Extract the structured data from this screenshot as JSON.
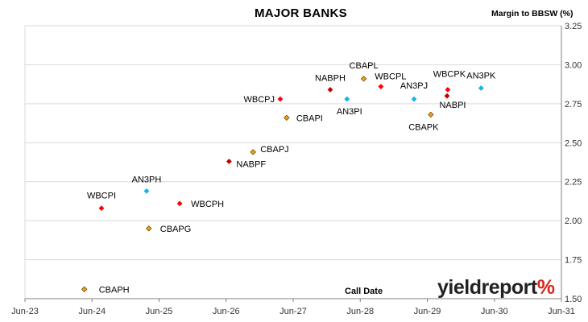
{
  "chart_data": {
    "type": "scatter",
    "title": "MAJOR BANKS",
    "xlabel": "Call Date",
    "ylabel": "Margin to BBSW (%)",
    "ylim": [
      1.5,
      3.25
    ],
    "y_ticks": [
      "1.50",
      "1.75",
      "2.00",
      "2.25",
      "2.50",
      "2.75",
      "3.00",
      "3.25"
    ],
    "x_ticks": [
      "Jun-23",
      "Jun-24",
      "Jun-25",
      "Jun-26",
      "Jun-27",
      "Jun-28",
      "Jun-29",
      "Jun-30",
      "Jun-31"
    ],
    "xlim": [
      "Jun-23",
      "Jun-31"
    ],
    "y_axis_position": "right",
    "grid": "horizontal",
    "legend": "none",
    "series_colors": {
      "CBA": "#f0a30a",
      "WBC": "#ff0000",
      "NAB": "#c00000",
      "ANZ": "#1ab2e8"
    },
    "points": [
      {
        "label": "CBAPH",
        "issuer": "CBA",
        "x": "2024-04-20",
        "y": 1.56
      },
      {
        "label": "WBCPI",
        "issuer": "WBC",
        "x": "2024-07-22",
        "y": 2.08
      },
      {
        "label": "AN3PH",
        "issuer": "ANZ",
        "x": "2025-03-24",
        "y": 2.19
      },
      {
        "label": "CBAPG",
        "issuer": "CBA",
        "x": "2025-04-06",
        "y": 1.95
      },
      {
        "label": "WBCPH",
        "issuer": "WBC",
        "x": "2025-09-22",
        "y": 2.11
      },
      {
        "label": "NABPF",
        "issuer": "NAB",
        "x": "2026-06-17",
        "y": 2.38
      },
      {
        "label": "CBAPJ",
        "issuer": "CBA",
        "x": "2026-10-26",
        "y": 2.44
      },
      {
        "label": "WBCPJ",
        "issuer": "WBC",
        "x": "2027-03-22",
        "y": 2.78
      },
      {
        "label": "CBAPI",
        "issuer": "CBA",
        "x": "2027-04-26",
        "y": 2.66
      },
      {
        "label": "NABPH",
        "issuer": "NAB",
        "x": "2027-12-20",
        "y": 2.84
      },
      {
        "label": "AN3PI",
        "issuer": "ANZ",
        "x": "2028-03-20",
        "y": 2.78
      },
      {
        "label": "CBAPL",
        "issuer": "CBA",
        "x": "2028-06-20",
        "y": 2.91
      },
      {
        "label": "WBCPL",
        "issuer": "WBC",
        "x": "2028-09-22",
        "y": 2.86
      },
      {
        "label": "AN3PJ",
        "issuer": "ANZ",
        "x": "2029-03-20",
        "y": 2.78
      },
      {
        "label": "CBAPK",
        "issuer": "CBA",
        "x": "2029-06-20",
        "y": 2.68
      },
      {
        "label": "NABPI",
        "issuer": "NAB",
        "x": "2029-09-17",
        "y": 2.8
      },
      {
        "label": "WBCPK",
        "issuer": "WBC",
        "x": "2029-09-21",
        "y": 2.84
      },
      {
        "label": "AN3PK",
        "issuer": "ANZ",
        "x": "2030-03-20",
        "y": 2.85
      }
    ]
  },
  "header": {
    "title": "MAJOR BANKS",
    "ylabel": "Margin to BBSW (%)"
  },
  "footer": {
    "call_date_label": "Call Date",
    "logo_text": "yieldreport",
    "logo_symbol": "%"
  }
}
